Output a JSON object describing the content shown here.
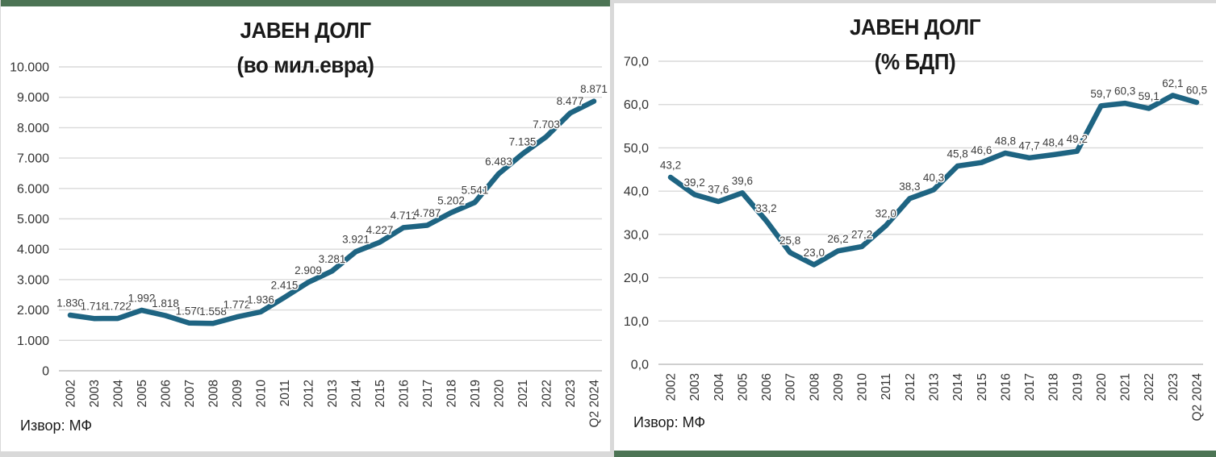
{
  "page": {
    "accent_color": "#4C7454",
    "background_color": "#d9d9d9",
    "line_color": "#1E6482"
  },
  "chart_data": [
    {
      "type": "line",
      "title": "ЈАВЕН ДОЛГ",
      "subtitle": "(во мил.евра)",
      "source": "Извор: МФ",
      "legend": "none",
      "grid": true,
      "line_color": "#1E6482",
      "categories": [
        "2002",
        "2003",
        "2004",
        "2005",
        "2006",
        "2007",
        "2008",
        "2009",
        "2010",
        "2011",
        "2012",
        "2013",
        "2014",
        "2015",
        "2016",
        "2017",
        "2018",
        "2019",
        "2020",
        "2021",
        "2022",
        "2023",
        "Q2 2024"
      ],
      "values": [
        1830,
        1718,
        1722,
        1992,
        1818,
        1570,
        1558,
        1772,
        1936,
        2415,
        2909,
        3281,
        3921,
        4227,
        4711,
        4787,
        5202,
        5541,
        6483,
        7135,
        7703,
        8477,
        8871
      ],
      "point_labels": [
        "1.830",
        "1.718",
        "1.722",
        "1.992",
        "1.818",
        "1.570",
        "1.558",
        "1.772",
        "1.936",
        "2.415",
        "2.909",
        "3.281",
        "3.921",
        "4.227",
        "4.711",
        "4.787",
        "5.202",
        "5.541",
        "6.483",
        "7.135",
        "7.703",
        "8.477",
        "8.871"
      ],
      "ylim": [
        0,
        10000
      ],
      "ytick_values": [
        10000,
        9000,
        8000,
        7000,
        6000,
        5000,
        4000,
        3000,
        2000,
        1000,
        0
      ],
      "ytick_labels": [
        "10.000",
        "9.000",
        "8.000",
        "7.000",
        "6.000",
        "5.000",
        "4.000",
        "3.000",
        "2.000",
        "1.000",
        "0"
      ]
    },
    {
      "type": "line",
      "title": "ЈАВЕН ДОЛГ",
      "subtitle": "(% БДП)",
      "source": "Извор: МФ",
      "legend": "none",
      "grid": true,
      "line_color": "#1E6482",
      "categories": [
        "2002",
        "2003",
        "2004",
        "2005",
        "2006",
        "2007",
        "2008",
        "2009",
        "2010",
        "2011",
        "2012",
        "2013",
        "2014",
        "2015",
        "2016",
        "2017",
        "2018",
        "2019",
        "2020",
        "2021",
        "2022",
        "2023",
        "Q2 2024"
      ],
      "values": [
        43.2,
        39.2,
        37.6,
        39.6,
        33.2,
        25.8,
        23.0,
        26.2,
        27.2,
        32.0,
        38.3,
        40.3,
        45.8,
        46.6,
        48.8,
        47.7,
        48.4,
        49.2,
        59.7,
        60.3,
        59.1,
        62.1,
        60.5
      ],
      "point_labels": [
        "43,2",
        "39,2",
        "37,6",
        "39,6",
        "33,2",
        "25,8",
        "23,0",
        "26,2",
        "27,2",
        "32,0",
        "38,3",
        "40,3",
        "45,8",
        "46,6",
        "48,8",
        "47,7",
        "48,4",
        "49,2",
        "59,7",
        "60,3",
        "59,1",
        "62,1",
        "60,5"
      ],
      "ylim": [
        0,
        70
      ],
      "ytick_values": [
        70,
        60,
        50,
        40,
        30,
        20,
        10,
        0
      ],
      "ytick_labels": [
        "70,0",
        "60,0",
        "50,0",
        "40,0",
        "30,0",
        "20,0",
        "10,0",
        "0,0"
      ]
    }
  ]
}
